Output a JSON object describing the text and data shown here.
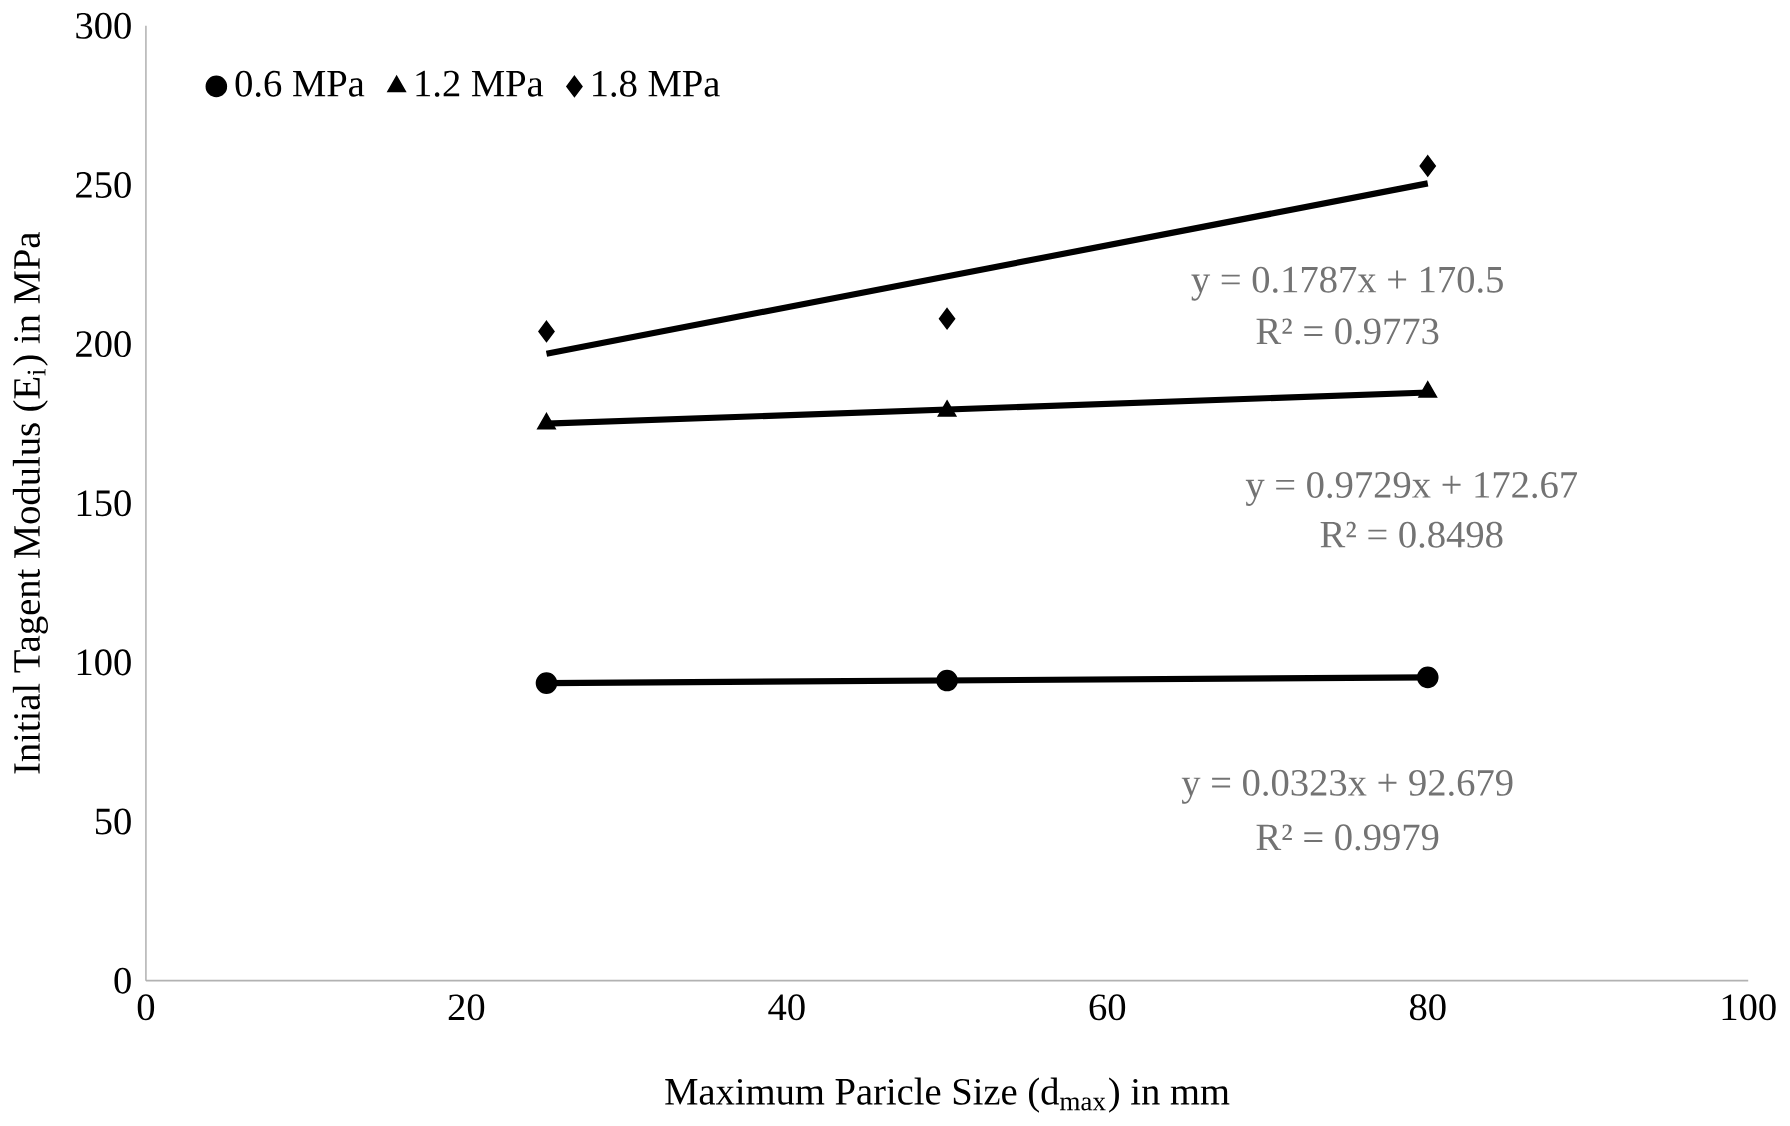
{
  "chart_data": {
    "type": "scatter",
    "xlabel": "Maximum Paricle Size (d$_{max}$) in mm",
    "ylabel": "Initial Tagent Modulus (E$_{i}$) in MPa",
    "xlim": [
      0,
      100
    ],
    "xticks": [
      0,
      20,
      40,
      60,
      80,
      100
    ],
    "ylim": [
      0,
      300
    ],
    "yticks": [
      0,
      50,
      100,
      150,
      200,
      250,
      300
    ],
    "grid": false,
    "legend": "top left",
    "series": [
      {
        "name": "0.6 MPa",
        "marker": "circle",
        "color": "#000000",
        "x": [
          25,
          50,
          80
        ],
        "values": [
          93.5,
          94.3,
          95.3
        ]
      },
      {
        "name": "1.2 MPa",
        "marker": "triangle",
        "color": "#000000",
        "x": [
          25,
          50,
          80
        ],
        "values": [
          175,
          179,
          185
        ]
      },
      {
        "name": "1.8 MPa",
        "marker": "diamond",
        "color": "#000000",
        "x": [
          25,
          50,
          80
        ],
        "values": [
          204,
          208,
          256
        ]
      },
      {
        "type": "line",
        "marker": "none",
        "color": "#000000",
        "x": [
          25,
          80
        ],
        "values": [
          93.5,
          95.3
        ]
      },
      {
        "type": "line",
        "marker": "none",
        "color": "#000000",
        "x": [
          25,
          80
        ],
        "values": [
          175,
          184.8
        ]
      },
      {
        "type": "line",
        "marker": "none",
        "color": "#000000",
        "x": [
          25,
          80
        ],
        "values": [
          197,
          250.5
        ]
      }
    ],
    "annotations": [
      "y = 0.1787x + 170.5",
      "R² = 0.9773",
      "y = 0.9729x + 172.67",
      "R² = 0.8498",
      "y = 0.0323x + 92.679",
      "R² = 0.9979"
    ]
  }
}
